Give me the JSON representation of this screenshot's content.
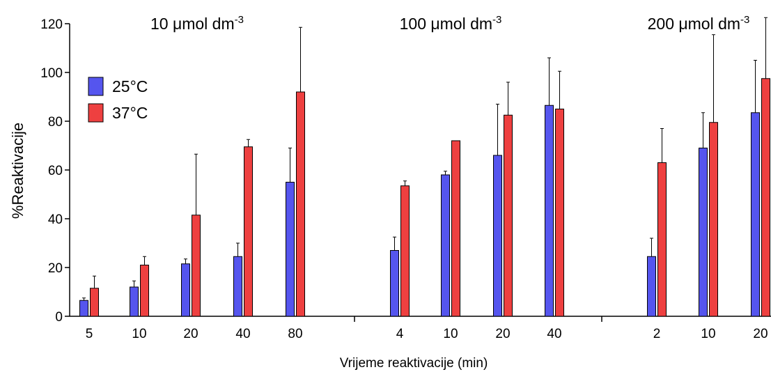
{
  "chart_data": {
    "type": "bar",
    "xlabel": "Vrijeme reaktivacije (min)",
    "ylabel": "%Reaktivacije",
    "ylim": [
      0,
      120
    ],
    "yticks": [
      0,
      20,
      40,
      60,
      80,
      100,
      120
    ],
    "grid": false,
    "legend_placement": "top-left",
    "series": [
      {
        "name": "25°C",
        "color": "#5555ee"
      },
      {
        "name": "37°C",
        "color": "#ee4040"
      }
    ],
    "groups": [
      {
        "title": "10 μmol dm",
        "title_sup": "-3",
        "categories": [
          {
            "label": "5",
            "values": [
              6.5,
              11.5
            ],
            "errors": [
              1.0,
              5.0
            ]
          },
          {
            "label": "10",
            "values": [
              12.0,
              21.0
            ],
            "errors": [
              2.5,
              3.5
            ]
          },
          {
            "label": "20",
            "values": [
              21.5,
              41.5
            ],
            "errors": [
              2.0,
              25.0
            ]
          },
          {
            "label": "40",
            "values": [
              24.5,
              69.5
            ],
            "errors": [
              5.5,
              3.0
            ]
          },
          {
            "label": "80",
            "values": [
              55.0,
              92.0
            ],
            "errors": [
              14.0,
              26.5
            ]
          }
        ]
      },
      {
        "title": "100 μmol dm",
        "title_sup": "-3",
        "categories": [
          {
            "label": "4",
            "values": [
              27.0,
              53.5
            ],
            "errors": [
              5.5,
              2.0
            ]
          },
          {
            "label": "10",
            "values": [
              58.0,
              72.0
            ],
            "errors": [
              1.5,
              0.0
            ]
          },
          {
            "label": "20",
            "values": [
              66.0,
              82.5
            ],
            "errors": [
              21.0,
              13.5
            ]
          },
          {
            "label": "40",
            "values": [
              86.5,
              85.0
            ],
            "errors": [
              19.5,
              15.5
            ]
          }
        ]
      },
      {
        "title": "200 μmol dm",
        "title_sup": "-3",
        "categories": [
          {
            "label": "2",
            "values": [
              24.5,
              63.0
            ],
            "errors": [
              7.5,
              14.0
            ]
          },
          {
            "label": "10",
            "values": [
              69.0,
              79.5
            ],
            "errors": [
              14.5,
              36.0
            ]
          },
          {
            "label": "20",
            "values": [
              83.5,
              97.5
            ],
            "errors": [
              21.5,
              25.0
            ]
          }
        ]
      }
    ]
  }
}
